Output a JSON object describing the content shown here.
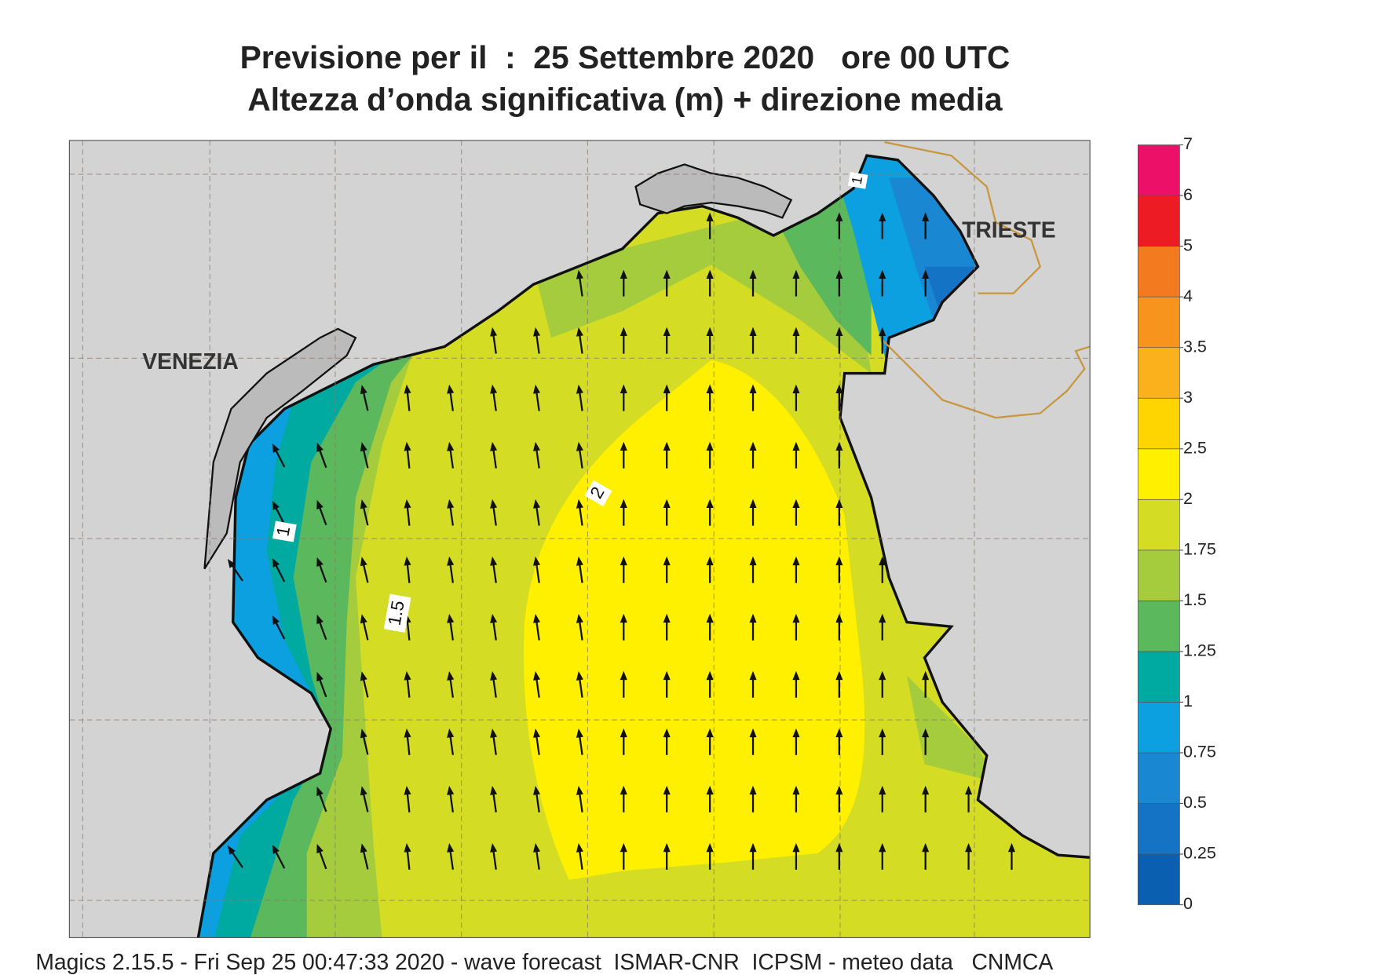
{
  "title": [
    "Previsione per il  :  25 Settembre 2020   ore 00 UTC",
    "Altezza d’onda significativa (m) + direzione media"
  ],
  "map": {
    "places": [
      "VENEZIA",
      "TRIESTE"
    ],
    "contour_labels": [
      "2",
      "1.5",
      "1",
      "1"
    ]
  },
  "legend": {
    "levels": [
      0,
      0.25,
      0.5,
      0.75,
      1,
      1.25,
      1.5,
      1.75,
      2,
      2.5,
      3,
      3.5,
      4,
      5,
      6,
      7
    ],
    "colors": [
      "#0a5fb0",
      "#1473c4",
      "#1a87d2",
      "#0ca0e0",
      "#00aaa0",
      "#5cb85c",
      "#a4cc3c",
      "#d4dc24",
      "#fff000",
      "#ffd500",
      "#fbb11c",
      "#f7941d",
      "#f47a20",
      "#ed1c24",
      "#ec1068"
    ]
  },
  "footer": "Magics 2.15.5 - Fri Sep 25 00:47:33 2020 - wave forecast  ISMAR-CNR  ICPSM - meteo data   CNMCA"
}
